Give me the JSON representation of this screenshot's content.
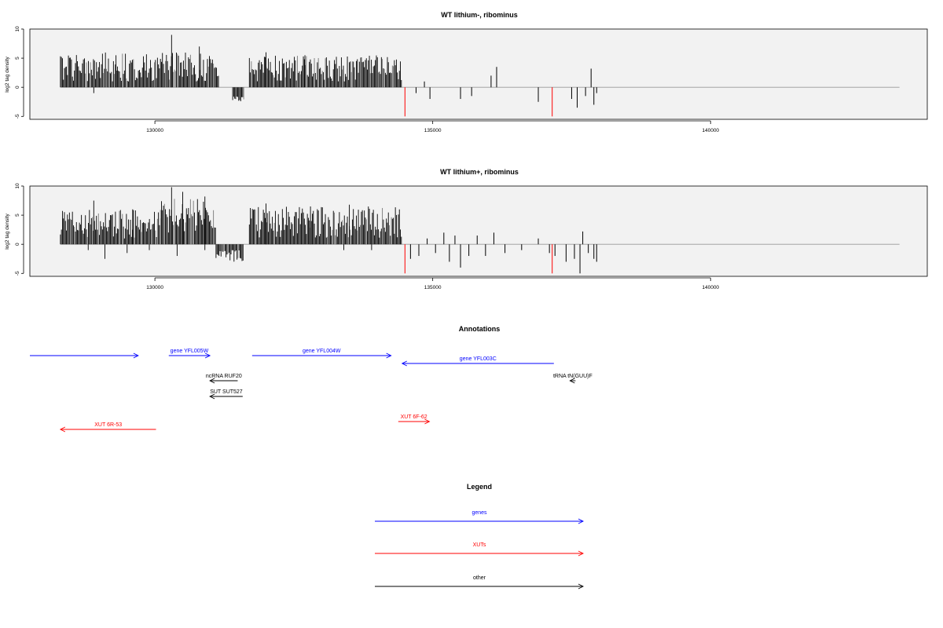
{
  "chart_data": [
    {
      "type": "bar",
      "title": "WT lithium-, ribominus",
      "ylabel": "log2 tag density",
      "xlim": [
        127750,
        143900
      ],
      "ylim": [
        -5.5,
        10
      ],
      "x_ticks": [
        130000,
        135000,
        140000
      ],
      "y_ticks": [
        -5,
        0,
        5,
        10
      ],
      "baseline": {
        "x_start": 128300,
        "x_end": 143400,
        "color": "#999999"
      },
      "segments": [
        {
          "x_start": 128300,
          "x_end": 131150,
          "min": 1.0,
          "max": 6.0,
          "spikes": [
            [
              130300,
              9.0
            ],
            [
              130800,
              7.0
            ],
            [
              129300,
              5.5
            ]
          ],
          "negatives": [
            [
              128900,
              -1.0
            ]
          ]
        },
        {
          "x_start": 131400,
          "x_end": 131600,
          "min": -2.5,
          "max": -1.5
        },
        {
          "x_start": 131700,
          "x_end": 134450,
          "min": 1.0,
          "max": 5.5,
          "spikes": [
            [
              132000,
              6.0
            ],
            [
              132700,
              5.5
            ]
          ],
          "negatives": []
        }
      ],
      "sparse": [
        [
          134700,
          -1.0
        ],
        [
          134850,
          1.0
        ],
        [
          134950,
          -2.0
        ],
        [
          135500,
          -2.0
        ],
        [
          135700,
          -1.5
        ],
        [
          136050,
          2.0
        ],
        [
          136150,
          3.5
        ],
        [
          136900,
          -2.5
        ],
        [
          137500,
          -2.0
        ],
        [
          137600,
          -3.5
        ],
        [
          137750,
          -1.5
        ],
        [
          137850,
          3.2
        ],
        [
          137900,
          -3.0
        ],
        [
          137950,
          -1.0
        ]
      ],
      "red_marks": [
        [
          134500,
          -5.0
        ],
        [
          137150,
          -5.0
        ]
      ],
      "colors": {
        "bars": "#000000",
        "grey_bars": "#777777",
        "red": "#ff0000"
      }
    },
    {
      "type": "bar",
      "title": "WT lithium+, ribominus",
      "ylabel": "log2 tag density",
      "xlim": [
        127750,
        143900
      ],
      "ylim": [
        -5.5,
        10
      ],
      "x_ticks": [
        130000,
        135000,
        140000
      ],
      "y_ticks": [
        -5,
        0,
        5,
        10
      ],
      "baseline": {
        "x_start": 128300,
        "x_end": 143400,
        "color": "#999999"
      },
      "segments": [
        {
          "x_start": 128300,
          "x_end": 130100,
          "min": 1.0,
          "max": 6.0,
          "spikes": [
            [
              128900,
              7.5
            ],
            [
              129600,
              6.0
            ]
          ],
          "negatives": [
            [
              128800,
              -1.0
            ],
            [
              129100,
              -2.5
            ],
            [
              129500,
              -1.5
            ],
            [
              129900,
              -1.0
            ]
          ]
        },
        {
          "x_start": 130100,
          "x_end": 131100,
          "min": 2.0,
          "max": 8.0,
          "spikes": [
            [
              130300,
              9.8
            ],
            [
              130500,
              9.0
            ],
            [
              130900,
              8.2
            ]
          ],
          "negatives": [
            [
              130400,
              -2.0
            ],
            [
              130900,
              -1.0
            ]
          ]
        },
        {
          "x_start": 131100,
          "x_end": 131600,
          "min": -3.0,
          "max": -1.0
        },
        {
          "x_start": 131700,
          "x_end": 134450,
          "min": 1.0,
          "max": 6.5,
          "spikes": [
            [
              132000,
              7.0
            ],
            [
              132800,
              6.5
            ],
            [
              133500,
              6.8
            ]
          ],
          "negatives": [
            [
              133400,
              -1.0
            ],
            [
              133900,
              -1.0
            ]
          ]
        }
      ],
      "sparse": [
        [
          134600,
          -2.5
        ],
        [
          134750,
          -2.0
        ],
        [
          134900,
          1.0
        ],
        [
          135050,
          -1.5
        ],
        [
          135200,
          2.0
        ],
        [
          135300,
          -3.0
        ],
        [
          135400,
          1.5
        ],
        [
          135500,
          -4.0
        ],
        [
          135650,
          -2.0
        ],
        [
          135800,
          1.5
        ],
        [
          135950,
          -2.0
        ],
        [
          136100,
          2.0
        ],
        [
          136300,
          -1.5
        ],
        [
          136600,
          -1.0
        ],
        [
          136900,
          1.0
        ],
        [
          137100,
          -1.5
        ],
        [
          137200,
          -2.0
        ],
        [
          137400,
          -3.0
        ],
        [
          137550,
          -2.5
        ],
        [
          137650,
          -5.0
        ],
        [
          137700,
          2.2
        ],
        [
          137800,
          -1.5
        ],
        [
          137900,
          -2.5
        ],
        [
          137950,
          -3.0
        ]
      ],
      "red_marks": [
        [
          134500,
          -5.0
        ],
        [
          137150,
          -5.0
        ]
      ],
      "colors": {
        "bars": "#000000",
        "grey_bars": "#777777",
        "red": "#ff0000"
      }
    }
  ],
  "annotations": {
    "title": "Annotations",
    "items": [
      {
        "label": "gene YFL005W",
        "show_label": false,
        "x_start": 127750,
        "x_end": 129700,
        "row": 0,
        "dir": "right",
        "color": "#0000ff"
      },
      {
        "label": "gene YFL005W",
        "show_label": true,
        "x_start": 130250,
        "x_end": 130990,
        "row": 0,
        "dir": "right",
        "color": "#0000ff"
      },
      {
        "label": "gene YFL004W",
        "show_label": true,
        "x_start": 131750,
        "x_end": 134250,
        "row": 0,
        "dir": "right",
        "color": "#0000ff"
      },
      {
        "label": "gene YFL003C",
        "show_label": true,
        "x_start": 134450,
        "x_end": 137180,
        "row": 1,
        "dir": "left",
        "color": "#0000ff"
      },
      {
        "label": "tRNA tN(GUU)F",
        "show_label": true,
        "x_start": 137470,
        "x_end": 137570,
        "row": 2,
        "dir": "left",
        "color": "#000000"
      },
      {
        "label": "ncRNA RUF20",
        "show_label": true,
        "x_start": 130990,
        "x_end": 131490,
        "row": 2,
        "dir": "left",
        "color": "#000000"
      },
      {
        "label": "SUT SUT527",
        "show_label": true,
        "x_start": 130990,
        "x_end": 131580,
        "row": 3,
        "dir": "left",
        "color": "#000000"
      },
      {
        "label": "XUT 6F-62",
        "show_label": true,
        "x_start": 134380,
        "x_end": 134940,
        "row": 4,
        "dir": "right",
        "color": "#ff0000"
      },
      {
        "label": "XUT 6R-53",
        "show_label": true,
        "x_start": 128300,
        "x_end": 130020,
        "row": 5,
        "dir": "left",
        "color": "#ff0000"
      }
    ]
  },
  "legend": {
    "title": "Legend",
    "items": [
      {
        "label": "genes",
        "color": "#0000ff"
      },
      {
        "label": "XUTs",
        "color": "#ff0000"
      },
      {
        "label": "other",
        "color": "#000000"
      }
    ]
  }
}
